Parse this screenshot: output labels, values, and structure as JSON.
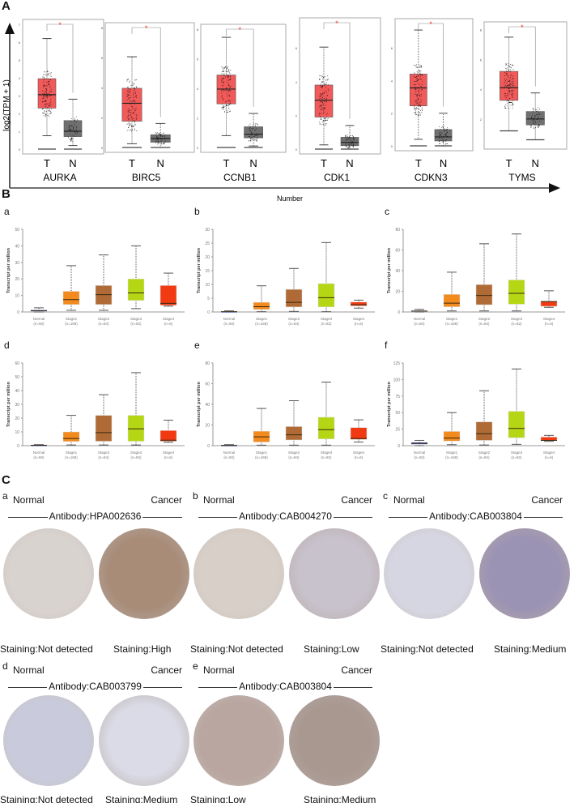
{
  "panel_labels": {
    "A": "A",
    "B": "B",
    "C": "C"
  },
  "chart_data": {
    "A": {
      "type": "box",
      "ylabel": "log2(TPM + 1)",
      "xlabel": "Number",
      "groups": [
        "T",
        "N"
      ],
      "colors": {
        "T": "#f25a5a",
        "N": "#707070"
      },
      "sig_mark": "*",
      "genes": [
        {
          "name": "AURKA",
          "ylim": [
            0,
            7
          ],
          "ticks": [
            0,
            1,
            2,
            3,
            4,
            5,
            6,
            7
          ],
          "T": [
            0.75,
            2.3,
            3.05,
            3.95,
            6.2
          ],
          "N": [
            0.2,
            0.7,
            1.0,
            1.6,
            2.8
          ]
        },
        {
          "name": "BIRC5",
          "ylim": [
            0,
            8
          ],
          "ticks": [
            0,
            2,
            4,
            6,
            8
          ],
          "T": [
            0.25,
            1.75,
            2.95,
            3.95,
            6.05
          ],
          "N": [
            0,
            0.35,
            0.6,
            0.85,
            1.6
          ]
        },
        {
          "name": "CCNB1",
          "ylim": [
            0,
            8
          ],
          "ticks": [
            0,
            2,
            4,
            6,
            8
          ],
          "T": [
            0.8,
            2.95,
            3.95,
            4.9,
            7.45
          ],
          "N": [
            0.1,
            0.65,
            0.9,
            1.4,
            2.3
          ]
        },
        {
          "name": "CDK1",
          "ylim": [
            0,
            7.5
          ],
          "ticks": [
            0,
            2,
            4,
            6
          ],
          "T": [
            0.25,
            1.9,
            2.9,
            3.8,
            6.05
          ],
          "N": [
            0,
            0.2,
            0.4,
            0.7,
            1.4
          ]
        },
        {
          "name": "CDKN3",
          "ylim": [
            0,
            7.5
          ],
          "ticks": [
            0,
            2,
            4,
            6
          ],
          "T": [
            0.4,
            2.45,
            3.55,
            4.4,
            7.1
          ],
          "N": [
            0,
            0.3,
            0.55,
            1.0,
            2.0
          ]
        },
        {
          "name": "TYMS",
          "ylim": [
            0.3,
            8.2
          ],
          "ticks": [
            2,
            4,
            6,
            8
          ],
          "T": [
            1.2,
            3.25,
            4.1,
            5.2,
            7.5
          ],
          "N": [
            0.6,
            1.6,
            2.0,
            2.5,
            3.75
          ]
        }
      ]
    },
    "B": {
      "type": "box",
      "ylabel": "Transcript per million",
      "categories": [
        "Normal",
        "Stage1",
        "Stage2",
        "Stage3",
        "Stage4"
      ],
      "counts": [
        "(n=50)",
        "(n=168)",
        "(n=84)",
        "(n=82)",
        "(n=6)"
      ],
      "colors": [
        "#3b4fc4",
        "#f28a1e",
        "#b06a35",
        "#b5d614",
        "#f23a12"
      ],
      "panels": [
        {
          "label": "a",
          "ylim": [
            0,
            50
          ],
          "ticks": [
            0,
            10,
            20,
            30,
            40,
            50
          ],
          "boxes": [
            [
              0,
              0.3,
              0.8,
              1.2,
              2.5
            ],
            [
              1,
              4.5,
              7.5,
              12.5,
              28
            ],
            [
              1,
              4.5,
              10.5,
              16,
              34.5
            ],
            [
              2,
              7,
              11.5,
              20,
              40
            ],
            [
              3.5,
              4,
              5.2,
              16,
              23.5
            ]
          ]
        },
        {
          "label": "b",
          "ylim": [
            0,
            30
          ],
          "ticks": [
            0,
            5,
            10,
            15,
            20,
            25,
            30
          ],
          "boxes": [
            [
              0,
              0,
              0.1,
              0.2,
              0.4
            ],
            [
              0.1,
              0.9,
              1.9,
              3.5,
              9.5
            ],
            [
              0.2,
              1.8,
              3.5,
              8.2,
              15.8
            ],
            [
              0.1,
              1.8,
              5.2,
              10.3,
              25.2
            ],
            [
              1.4,
              2.2,
              2.6,
              3.6,
              4.3
            ]
          ]
        },
        {
          "label": "c",
          "ylim": [
            0,
            80
          ],
          "ticks": [
            0,
            20,
            40,
            60,
            80
          ],
          "boxes": [
            [
              0,
              0.3,
              0.8,
              1.5,
              2.5
            ],
            [
              1,
              5,
              8.5,
              17,
              38.5
            ],
            [
              1,
              7,
              16,
              26.5,
              66
            ],
            [
              1,
              7.5,
              18,
              31,
              75.5
            ],
            [
              4.5,
              5.5,
              10,
              10.5,
              20.5
            ]
          ]
        },
        {
          "label": "d",
          "ylim": [
            0,
            60
          ],
          "ticks": [
            0,
            10,
            20,
            30,
            40,
            50,
            60
          ],
          "boxes": [
            [
              0,
              0.1,
              0.3,
              0.5,
              0.8
            ],
            [
              0.5,
              3,
              5.2,
              10,
              22
            ],
            [
              0.5,
              3.2,
              9.5,
              22,
              37
            ],
            [
              0.5,
              3.2,
              12.2,
              22,
              53
            ],
            [
              2.5,
              3.2,
              4,
              11,
              18.5
            ]
          ]
        },
        {
          "label": "e",
          "ylim": [
            0,
            80
          ],
          "ticks": [
            0,
            20,
            40,
            60,
            80
          ],
          "boxes": [
            [
              0,
              0.1,
              0.3,
              0.5,
              1
            ],
            [
              0.5,
              3.5,
              8.5,
              14,
              36
            ],
            [
              0.5,
              5.5,
              10.5,
              18.5,
              43.5
            ],
            [
              0.5,
              6.5,
              15.5,
              27.5,
              61.5
            ],
            [
              3.5,
              6,
              7,
              17.5,
              25
            ]
          ]
        },
        {
          "label": "f",
          "ylim": [
            0,
            125
          ],
          "ticks": [
            0,
            25,
            50,
            75,
            100,
            125
          ],
          "boxes": [
            [
              0,
              2,
              3.5,
              5,
              8
            ],
            [
              1.5,
              7,
              11.5,
              21.5,
              50
            ],
            [
              1,
              8,
              18,
              36,
              83
            ],
            [
              2,
              12,
              26,
              52,
              116
            ],
            [
              6.5,
              7.5,
              8,
              13,
              15.5
            ]
          ]
        }
      ]
    }
  },
  "ihc": {
    "normal_label": "Normal",
    "cancer_label": "Cancer",
    "panels": [
      {
        "label": "a",
        "antibody": "Antibody:HPA002636",
        "normal_staining": "Staining:Not detected",
        "cancer_staining": "Staining:High",
        "normal_color": "#d9d3cf",
        "cancer_color": "#a88c78"
      },
      {
        "label": "b",
        "antibody": "Antibody:CAB004270",
        "normal_staining": "Staining:Not detected",
        "cancer_staining": "Staining:Low",
        "normal_color": "#d8cfc8",
        "cancer_color": "#c8c2cc"
      },
      {
        "label": "c",
        "antibody": "Antibody:CAB003804",
        "normal_staining": "Staining:Not detected",
        "cancer_staining": "Staining:Medium",
        "normal_color": "#d6d6e2",
        "cancer_color": "#9b93b4"
      },
      {
        "label": "d",
        "antibody": "Antibody:CAB003799",
        "normal_staining": "Staining:Not detected",
        "cancer_staining": "Staining:Medium",
        "normal_color": "#c9cbdc",
        "cancer_color": "#dadbe6"
      },
      {
        "label": "e",
        "antibody": "Antibody:CAB003804",
        "normal_staining": "Staining:Low",
        "cancer_staining": "Staining:Medium",
        "normal_color": "#b9a6a0",
        "cancer_color": "#a89890"
      }
    ]
  }
}
